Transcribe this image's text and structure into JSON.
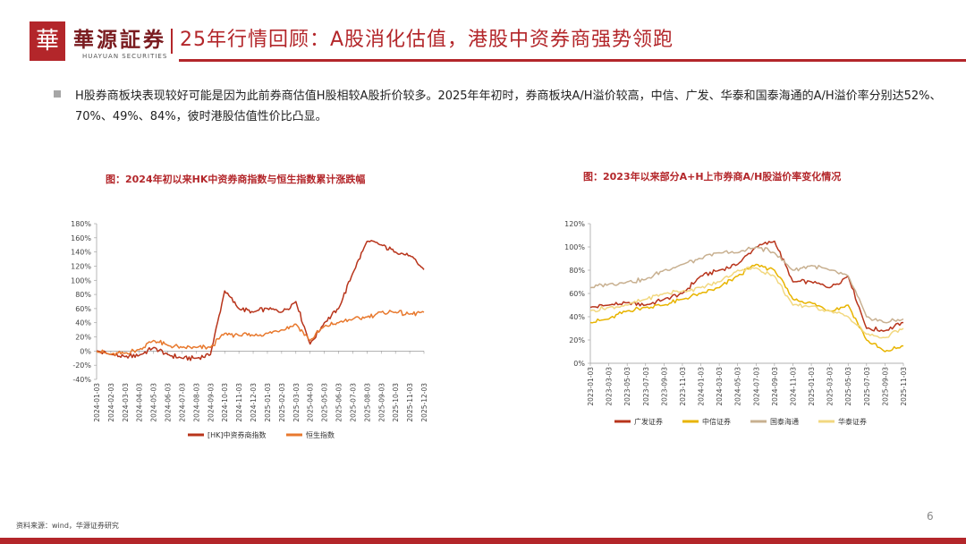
{
  "header": {
    "logo_glyph": "華",
    "company_cn": "華源証券",
    "company_en": "HUAYUAN SECURITIES",
    "title": "25年行情回顾：A股消化估值，港股中资券商强势领跑",
    "accent_color": "#b3262a"
  },
  "bullet_text": "H股券商板块表现较好可能是因为此前券商估值H股相较A股折价较多。2025年年初时，券商板块A/H溢价较高，中信、广发、华泰和国泰海通的A/H溢价率分别达52%、70%、49%、84%，彼时港股估值性价比凸显。",
  "footer": {
    "source": "资料来源：wind，华源证券研究",
    "page_number": "6"
  },
  "chart_data": [
    {
      "type": "line",
      "title": "图：2024年初以来HK中资券商指数与恒生指数累计涨跌幅",
      "ylim": [
        -40,
        180
      ],
      "yticks": [
        "-40%",
        "-20%",
        "0%",
        "20%",
        "40%",
        "60%",
        "80%",
        "100%",
        "120%",
        "140%",
        "160%",
        "180%"
      ],
      "x": [
        "2024-01-03",
        "2024-02-03",
        "2024-03-03",
        "2024-04-03",
        "2024-05-03",
        "2024-06-03",
        "2024-07-03",
        "2024-08-03",
        "2024-09-03",
        "2024-10-03",
        "2024-11-03",
        "2024-12-03",
        "2025-01-03",
        "2025-02-03",
        "2025-03-03",
        "2025-04-03",
        "2025-05-03",
        "2025-06-03",
        "2025-07-03",
        "2025-08-03",
        "2025-09-03",
        "2025-10-03",
        "2025-11-03",
        "2025-12-03"
      ],
      "series": [
        {
          "name": "[HK]中资券商指数",
          "color": "#b8341b",
          "values": [
            0,
            -5,
            -8,
            -6,
            5,
            -5,
            -10,
            -10,
            -5,
            85,
            60,
            55,
            60,
            55,
            70,
            10,
            40,
            60,
            110,
            155,
            150,
            140,
            135,
            115
          ]
        },
        {
          "name": "恒生指数",
          "color": "#e8792e",
          "values": [
            0,
            -5,
            -3,
            2,
            15,
            8,
            5,
            5,
            5,
            25,
            22,
            22,
            25,
            30,
            38,
            15,
            35,
            40,
            45,
            48,
            55,
            55,
            52,
            55
          ]
        }
      ]
    },
    {
      "type": "line",
      "title": "图：2023年以来部分A+H上市券商A/H股溢价率变化情况",
      "ylim": [
        0,
        120
      ],
      "yticks": [
        "0%",
        "20%",
        "40%",
        "60%",
        "80%",
        "100%",
        "120%"
      ],
      "x": [
        "2023-01-03",
        "2023-03-03",
        "2023-05-03",
        "2023-07-03",
        "2023-09-03",
        "2023-11-03",
        "2024-01-03",
        "2024-03-03",
        "2024-05-03",
        "2024-07-03",
        "2024-09-03",
        "2024-11-03",
        "2025-01-03",
        "2025-03-03",
        "2025-05-03",
        "2025-07-03",
        "2025-09-03",
        "2025-11-03"
      ],
      "series": [
        {
          "name": "广发证券",
          "color": "#b8341b",
          "values": [
            48,
            50,
            52,
            50,
            55,
            60,
            75,
            80,
            85,
            100,
            105,
            70,
            70,
            65,
            75,
            30,
            28,
            35
          ]
        },
        {
          "name": "中信证券",
          "color": "#e8b400",
          "values": [
            35,
            38,
            45,
            48,
            50,
            55,
            60,
            65,
            75,
            85,
            80,
            55,
            52,
            45,
            50,
            20,
            10,
            15
          ]
        },
        {
          "name": "国泰海通",
          "color": "#c8b090",
          "values": [
            65,
            68,
            70,
            72,
            80,
            85,
            90,
            95,
            95,
            100,
            95,
            80,
            84,
            80,
            75,
            40,
            35,
            38
          ]
        },
        {
          "name": "华泰证券",
          "color": "#f2d880",
          "values": [
            45,
            48,
            50,
            55,
            60,
            62,
            65,
            70,
            80,
            82,
            75,
            50,
            49,
            45,
            40,
            25,
            22,
            30
          ]
        }
      ]
    }
  ]
}
